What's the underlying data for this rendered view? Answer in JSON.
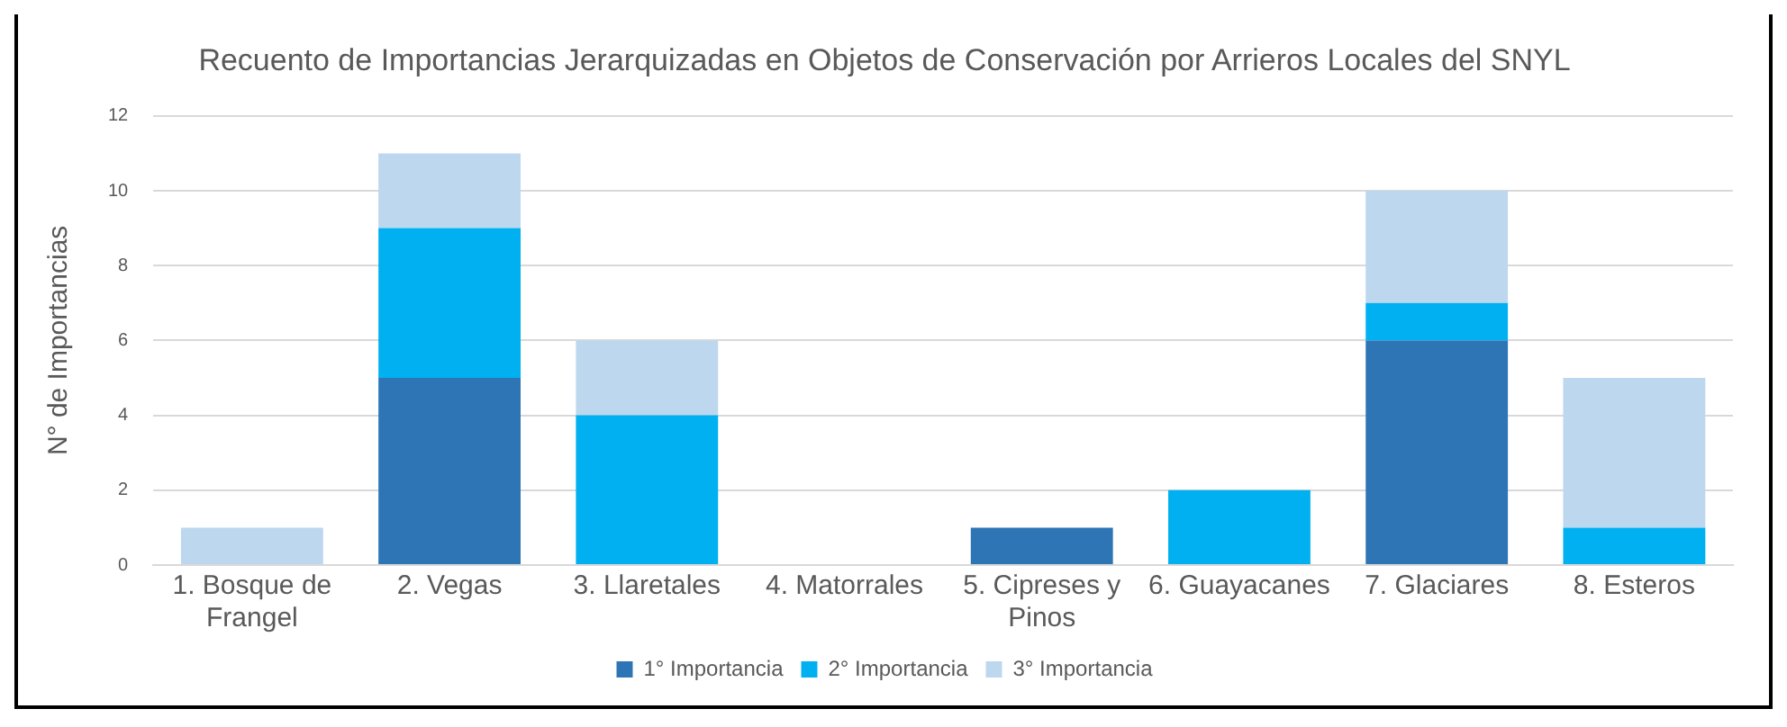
{
  "chart_data": {
    "type": "bar",
    "title": "Recuento de Importancias Jerarquizadas en Objetos de Conservación por Arrieros Locales del SNYL",
    "ylabel": "N° de Importancias",
    "categories": [
      "1. Bosque de Frangel",
      "2. Vegas",
      "3. Llaretales",
      "4. Matorrales",
      "5. Cipreses y Pinos",
      "6. Guayacanes",
      "7. Glaciares",
      "8. Esteros"
    ],
    "series": [
      {
        "name": "1° Importancia",
        "color": "#2e75b6",
        "values": [
          0,
          5,
          0,
          0,
          1,
          0,
          6,
          0
        ]
      },
      {
        "name": "2° Importancia",
        "color": "#00b0f0",
        "values": [
          0,
          4,
          4,
          0,
          0,
          2,
          1,
          1
        ]
      },
      {
        "name": "3° Importancia",
        "color": "#bdd7ee",
        "values": [
          1,
          2,
          2,
          0,
          0,
          0,
          3,
          4
        ]
      }
    ],
    "stacked": true,
    "ylim": [
      0,
      12
    ],
    "yticks": [
      0,
      2,
      4,
      6,
      8,
      10,
      12
    ],
    "grid": "y",
    "legend": "bottom"
  }
}
